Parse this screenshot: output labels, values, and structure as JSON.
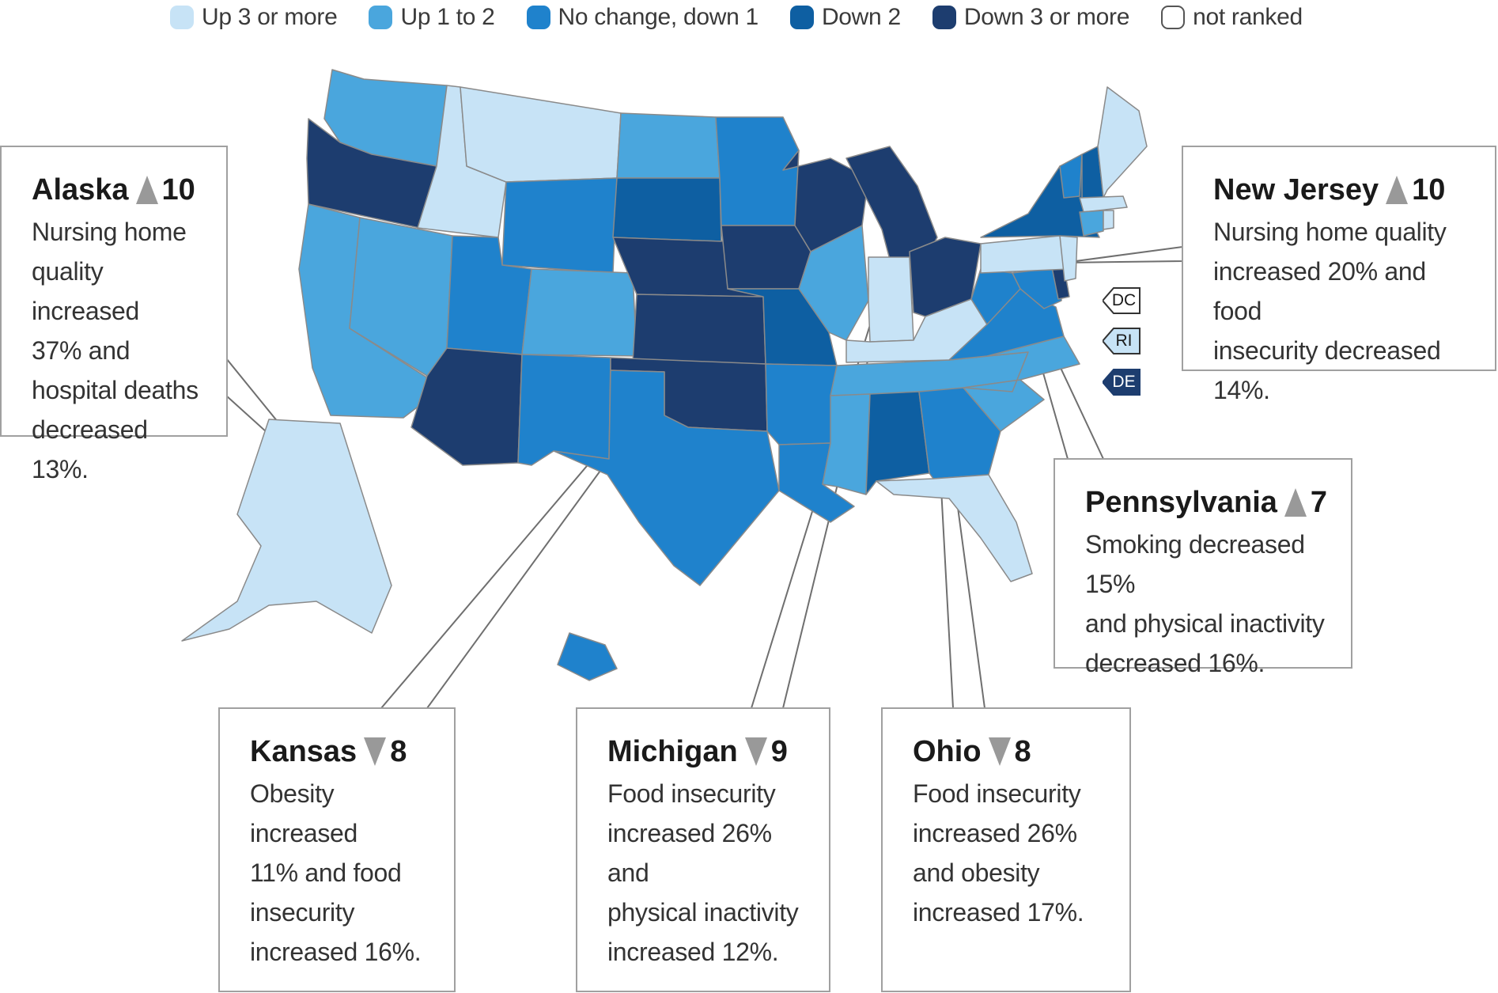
{
  "legend": [
    {
      "label": "Up 3 or more",
      "color": "#c7e3f6"
    },
    {
      "label": "Up 1 to 2",
      "color": "#4aa6dd"
    },
    {
      "label": "No change, down 1",
      "color": "#1f82cc"
    },
    {
      "label": "Down 2",
      "color": "#0e5fa2"
    },
    {
      "label": "Down 3 or more",
      "color": "#1d3d6f"
    },
    {
      "label": "not ranked",
      "color": "#ffffff"
    }
  ],
  "callouts": {
    "alaska": {
      "state": "Alaska",
      "direction": "up",
      "rank": "10",
      "lines": [
        "Nursing home",
        "quality increased",
        "37% and",
        "hospital deaths",
        "decreased 13%."
      ]
    },
    "new_jersey": {
      "state": "New Jersey",
      "direction": "up",
      "rank": "10",
      "lines": [
        "Nursing home quality",
        "increased 20% and food",
        "insecurity decreased 14%."
      ]
    },
    "pennsylvania": {
      "state": "Pennsylvania",
      "direction": "up",
      "rank": "7",
      "lines": [
        "Smoking decreased 15%",
        "and physical inactivity",
        "decreased 16%."
      ]
    },
    "kansas": {
      "state": "Kansas",
      "direction": "down",
      "rank": "8",
      "lines": [
        "Obesity increased",
        "11% and food",
        "insecurity",
        "increased 16%."
      ]
    },
    "michigan": {
      "state": "Michigan",
      "direction": "down",
      "rank": "9",
      "lines": [
        "Food insecurity",
        "increased 26% and",
        "physical inactivity",
        "increased 12%."
      ]
    },
    "ohio": {
      "state": "Ohio",
      "direction": "down",
      "rank": "8",
      "lines": [
        "Food insecurity",
        "increased 26%",
        "and obesity",
        "increased 17%."
      ]
    }
  },
  "small_states": [
    {
      "label": "DC",
      "category": "not ranked"
    },
    {
      "label": "RI",
      "category": "Up 3 or more"
    },
    {
      "label": "DE",
      "category": "Down 3 or more"
    }
  ],
  "state_categories": {
    "Washington": "Up 1 to 2",
    "Oregon": "Down 3 or more",
    "California": "Up 1 to 2",
    "Nevada": "Up 1 to 2",
    "Idaho": "Up 3 or more",
    "Montana": "Up 3 or more",
    "Wyoming": "No change, down 1",
    "Utah": "No change, down 1",
    "Arizona": "Down 3 or more",
    "Colorado": "Up 1 to 2",
    "New Mexico": "No change, down 1",
    "North Dakota": "Up 1 to 2",
    "South Dakota": "Down 2",
    "Nebraska": "Down 3 or more",
    "Kansas": "Down 3 or more",
    "Oklahoma": "Down 3 or more",
    "Texas": "No change, down 1",
    "Minnesota": "No change, down 1",
    "Iowa": "Down 3 or more",
    "Missouri": "Down 2",
    "Arkansas": "No change, down 1",
    "Louisiana": "No change, down 1",
    "Wisconsin": "Down 3 or more",
    "Illinois": "Up 1 to 2",
    "Michigan": "Down 3 or more",
    "Indiana": "Up 3 or more",
    "Ohio": "Down 3 or more",
    "Kentucky": "Up 3 or more",
    "Tennessee": "Up 1 to 2",
    "Mississippi": "Up 1 to 2",
    "Alabama": "Down 2",
    "Georgia": "No change, down 1",
    "Florida": "Up 3 or more",
    "South Carolina": "Up 1 to 2",
    "North Carolina": "Up 1 to 2",
    "Virginia": "No change, down 1",
    "West Virginia": "No change, down 1",
    "Maryland": "No change, down 1",
    "Delaware": "Down 3 or more",
    "New Jersey": "Up 3 or more",
    "Pennsylvania": "Up 3 or more",
    "New York": "Down 2",
    "Vermont": "No change, down 1",
    "New Hampshire": "Down 2",
    "Maine": "Up 3 or more",
    "Massachusetts": "Up 3 or more",
    "Connecticut": "Up 1 to 2",
    "Rhode Island": "Up 3 or more",
    "Alaska": "Up 3 or more",
    "Hawaii": "No change, down 1"
  }
}
